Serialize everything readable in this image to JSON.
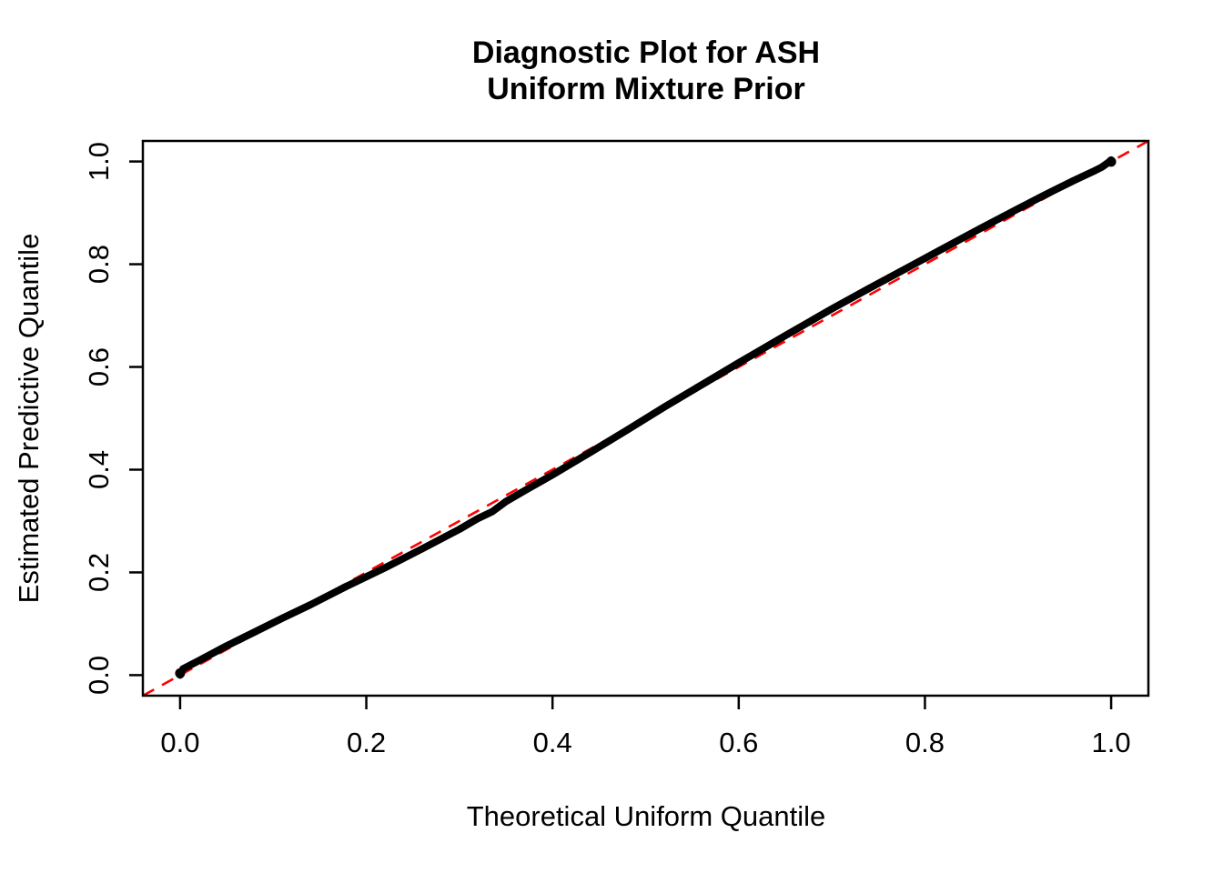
{
  "chart_data": {
    "type": "scatter",
    "title_lines": [
      "Diagnostic Plot for ASH",
      "Uniform Mixture Prior"
    ],
    "xlabel": "Theoretical Uniform Quantile",
    "ylabel": "Estimated Predictive Quantile",
    "xlim": [
      -0.04,
      1.04
    ],
    "ylim": [
      -0.04,
      1.04
    ],
    "x_ticks": [
      0.0,
      0.2,
      0.4,
      0.6,
      0.8,
      1.0
    ],
    "y_ticks": [
      0.0,
      0.2,
      0.4,
      0.6,
      0.8,
      1.0
    ],
    "x_tick_labels": [
      "0.0",
      "0.2",
      "0.4",
      "0.6",
      "0.8",
      "1.0"
    ],
    "y_tick_labels": [
      "0.0",
      "0.2",
      "0.4",
      "0.6",
      "0.8",
      "1.0"
    ],
    "grid": false,
    "legend": null,
    "frame_color": "#000000",
    "background_color": "#ffffff",
    "series": [
      {
        "name": "estimated-predictive-quantiles",
        "style": "thick-point-line",
        "color": "#000000",
        "points": [
          [
            0.0,
            0.0
          ],
          [
            0.003,
            0.012
          ],
          [
            0.02,
            0.028
          ],
          [
            0.05,
            0.057
          ],
          [
            0.08,
            0.084
          ],
          [
            0.11,
            0.111
          ],
          [
            0.14,
            0.137
          ],
          [
            0.18,
            0.174
          ],
          [
            0.22,
            0.209
          ],
          [
            0.26,
            0.246
          ],
          [
            0.3,
            0.284
          ],
          [
            0.32,
            0.305
          ],
          [
            0.335,
            0.318
          ],
          [
            0.35,
            0.338
          ],
          [
            0.37,
            0.359
          ],
          [
            0.4,
            0.39
          ],
          [
            0.44,
            0.433
          ],
          [
            0.48,
            0.477
          ],
          [
            0.52,
            0.522
          ],
          [
            0.56,
            0.565
          ],
          [
            0.6,
            0.608
          ],
          [
            0.65,
            0.661
          ],
          [
            0.7,
            0.713
          ],
          [
            0.74,
            0.753
          ],
          [
            0.78,
            0.792
          ],
          [
            0.82,
            0.831
          ],
          [
            0.86,
            0.87
          ],
          [
            0.9,
            0.908
          ],
          [
            0.93,
            0.936
          ],
          [
            0.96,
            0.963
          ],
          [
            0.98,
            0.98
          ],
          [
            0.99,
            0.989
          ],
          [
            0.997,
            0.998
          ],
          [
            1.0,
            1.003
          ]
        ]
      }
    ],
    "reference_line": {
      "name": "identity-line",
      "equation": "y = x",
      "style": "dashed",
      "color": "#FF0000",
      "from": [
        -0.04,
        -0.04
      ],
      "to": [
        1.04,
        1.04
      ]
    }
  }
}
